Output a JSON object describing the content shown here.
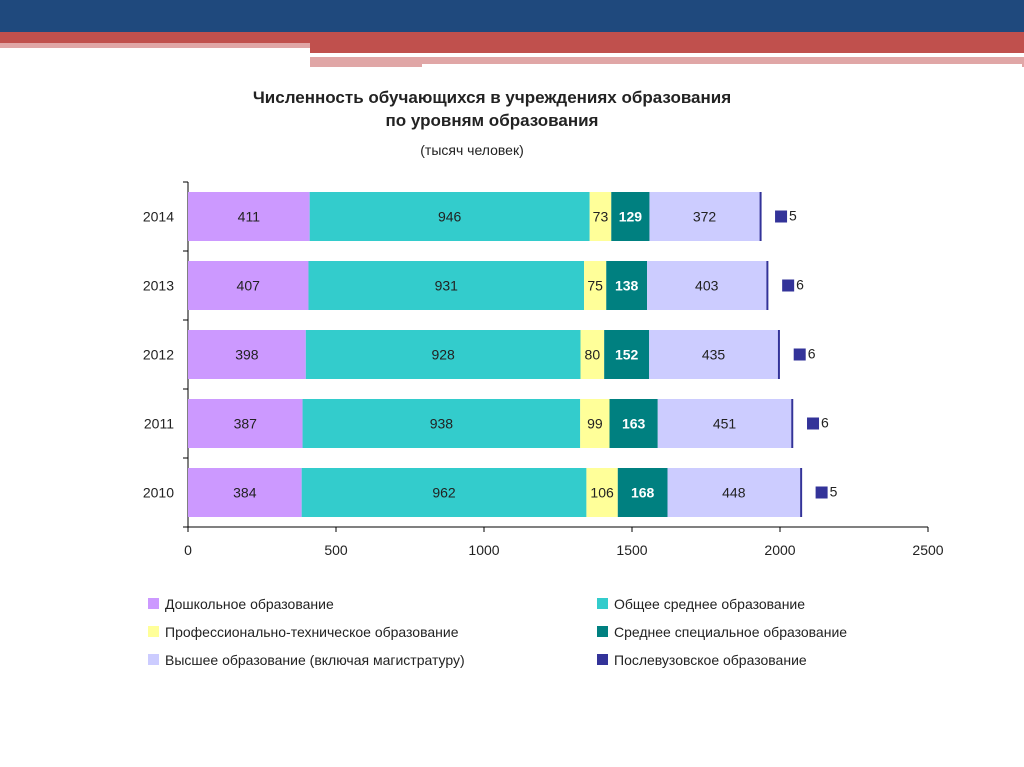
{
  "colors": {
    "header_blue": "#1f497d",
    "header_red": "#c0504d",
    "header_pink": "#e0a6a6"
  },
  "chart_data": {
    "type": "bar",
    "orientation": "horizontal",
    "stacked": true,
    "title": "Численность обучающихся в учреждениях образования",
    "title_line2": "по уровням образования",
    "subtitle": "(тысяч человек)",
    "categories": [
      "2014",
      "2013",
      "2012",
      "2011",
      "2010"
    ],
    "xlim": [
      0,
      2500
    ],
    "xticks": [
      0,
      500,
      1000,
      1500,
      2000,
      2500
    ],
    "grid": false,
    "legend_placement": "bottom",
    "series": [
      {
        "name": "Дошкольное образование",
        "color": "#cc99ff",
        "values": [
          411,
          407,
          398,
          387,
          384
        ]
      },
      {
        "name": "Общее среднее образование",
        "color": "#33cccc",
        "values": [
          946,
          931,
          928,
          938,
          962
        ]
      },
      {
        "name": "Профессионально-техническое образование",
        "color": "#ffff99",
        "values": [
          73,
          75,
          80,
          99,
          106
        ]
      },
      {
        "name": "Среднее специальное образование",
        "color": "#008080",
        "values": [
          129,
          138,
          152,
          163,
          168
        ]
      },
      {
        "name": "Высшее образование (включая магистратуру)",
        "color": "#ccccff",
        "values": [
          372,
          403,
          435,
          451,
          448
        ]
      },
      {
        "name": "Послевузовское образование",
        "color": "#333399",
        "values": [
          5,
          6,
          6,
          6,
          5
        ]
      }
    ]
  }
}
